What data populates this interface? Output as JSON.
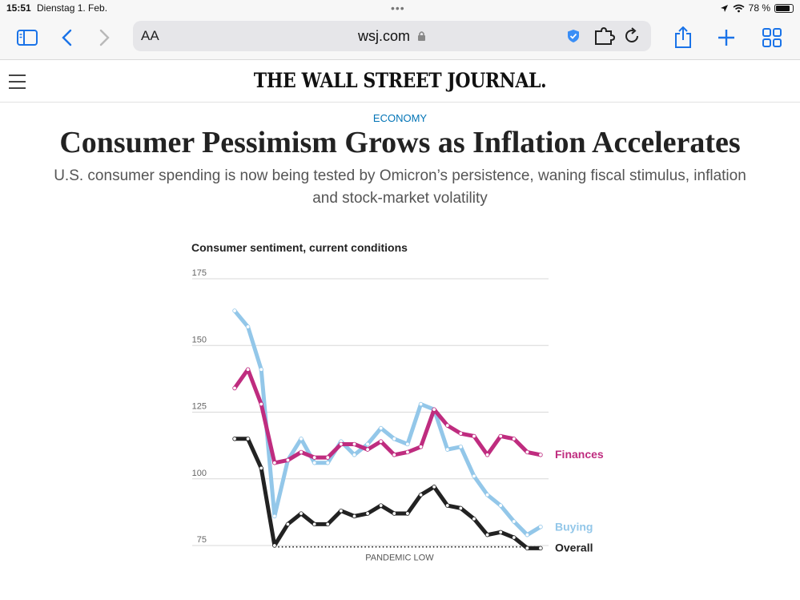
{
  "status": {
    "time": "15:51",
    "date": "Dienstag 1. Feb.",
    "battery": "78 %"
  },
  "browser": {
    "text_size": "AA",
    "url": "wsj.com"
  },
  "site": {
    "logo": "THE WALL STREET JOURNAL."
  },
  "article": {
    "section": "ECONOMY",
    "headline": "Consumer Pessimism Grows as Inflation Accelerates",
    "dek": "U.S. consumer spending is now being tested by Omicron’s persistence, waning fiscal stimulus, inflation and stock-market volatility"
  },
  "colors": {
    "finances": "#bf2c7f",
    "buying": "#93c7e9",
    "overall": "#222222",
    "accent": "#0274b6"
  },
  "chart_data": {
    "type": "line",
    "title": "Consumer sentiment, current conditions",
    "y_ticks": [
      75,
      100,
      125,
      150,
      175
    ],
    "ylim": [
      72,
      175
    ],
    "x": [
      0,
      1,
      2,
      3,
      4,
      5,
      6,
      7,
      8,
      9,
      10,
      11,
      12,
      13,
      14,
      15,
      16,
      17,
      18,
      19,
      20,
      21,
      22,
      23
    ],
    "series": [
      {
        "name": "Finances",
        "values": [
          134,
          141,
          128,
          106,
          107,
          110,
          108,
          108,
          113,
          113,
          111,
          114,
          109,
          110,
          112,
          126,
          120,
          117,
          116,
          109,
          116,
          115,
          110,
          109
        ]
      },
      {
        "name": "Buying",
        "values": [
          163,
          157,
          141,
          86,
          107,
          115,
          106,
          106,
          114,
          109,
          113,
          119,
          115,
          113,
          128,
          126,
          111,
          112,
          101,
          94,
          90,
          84,
          79,
          82
        ]
      },
      {
        "name": "Overall",
        "values": [
          115,
          115,
          104,
          75,
          83,
          87,
          83,
          83,
          88,
          86,
          87,
          90,
          87,
          87,
          94,
          97,
          90,
          89,
          85,
          79,
          80,
          78,
          74,
          74
        ]
      }
    ],
    "annotation": "PANDEMIC LOW",
    "pandemic_low": 74.5
  }
}
